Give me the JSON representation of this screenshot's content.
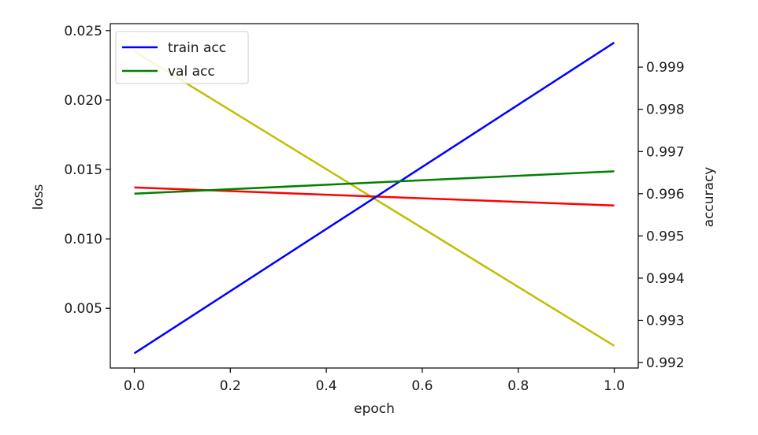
{
  "chart_data": {
    "type": "line",
    "title": "",
    "xlabel": "epoch",
    "ylabel_left": "loss",
    "ylabel_right": "accuracy",
    "xlim": [
      -0.05,
      1.05
    ],
    "ylim_left": [
      0.0007,
      0.0255
    ],
    "ylim_right": [
      0.99187,
      1.00003
    ],
    "xticks": [
      0.0,
      0.2,
      0.4,
      0.6,
      0.8,
      1.0
    ],
    "xtick_labels": [
      "0.0",
      "0.2",
      "0.4",
      "0.6",
      "0.8",
      "1.0"
    ],
    "yticks_left": [
      0.005,
      0.01,
      0.015,
      0.02,
      0.025
    ],
    "ytick_labels_left": [
      "0.005",
      "0.010",
      "0.015",
      "0.020",
      "0.025"
    ],
    "yticks_right": [
      0.992,
      0.993,
      0.994,
      0.995,
      0.996,
      0.997,
      0.998,
      0.999
    ],
    "ytick_labels_right": [
      "0.992",
      "0.993",
      "0.994",
      "0.995",
      "0.996",
      "0.997",
      "0.998",
      "0.999"
    ],
    "grid": false,
    "legend_position": "top-left",
    "series": [
      {
        "name": "",
        "axis": "left",
        "color": "#bfbf00",
        "x": [
          0.0,
          1.0
        ],
        "y": [
          0.0235,
          0.0023
        ]
      },
      {
        "name": "",
        "axis": "left",
        "color": "#ff0000",
        "x": [
          0.0,
          1.0
        ],
        "y": [
          0.0137,
          0.0124
        ]
      },
      {
        "name": "train acc",
        "axis": "right",
        "color": "#0000ff",
        "x": [
          0.0,
          1.0
        ],
        "y": [
          0.99222,
          0.99958
        ]
      },
      {
        "name": "val acc",
        "axis": "right",
        "color": "#008000",
        "x": [
          0.0,
          1.0
        ],
        "y": [
          0.996,
          0.99653
        ]
      }
    ]
  }
}
